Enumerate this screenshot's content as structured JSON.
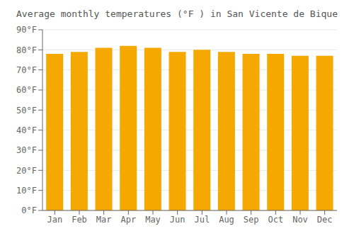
{
  "chart_data": {
    "type": "bar",
    "title": "Average monthly temperatures (°F ) in San Vicente de Bique",
    "categories": [
      "Jan",
      "Feb",
      "Mar",
      "Apr",
      "May",
      "Jun",
      "Jul",
      "Aug",
      "Sep",
      "Oct",
      "Nov",
      "Dec"
    ],
    "values": [
      78,
      79,
      81,
      82,
      81,
      79,
      80,
      79,
      78,
      78,
      77,
      77
    ],
    "color": "#F5A800",
    "ylim": [
      0,
      90
    ],
    "yticks": [
      {
        "value": 0,
        "label": "0°F"
      },
      {
        "value": 10,
        "label": "10°F"
      },
      {
        "value": 20,
        "label": "20°F"
      },
      {
        "value": 30,
        "label": "30°F"
      },
      {
        "value": 40,
        "label": "40°F"
      },
      {
        "value": 50,
        "label": "50°F"
      },
      {
        "value": 60,
        "label": "60°F"
      },
      {
        "value": 70,
        "label": "70°F"
      },
      {
        "value": 80,
        "label": "80°F"
      },
      {
        "value": 90,
        "label": "90°F"
      }
    ],
    "grid": true
  }
}
